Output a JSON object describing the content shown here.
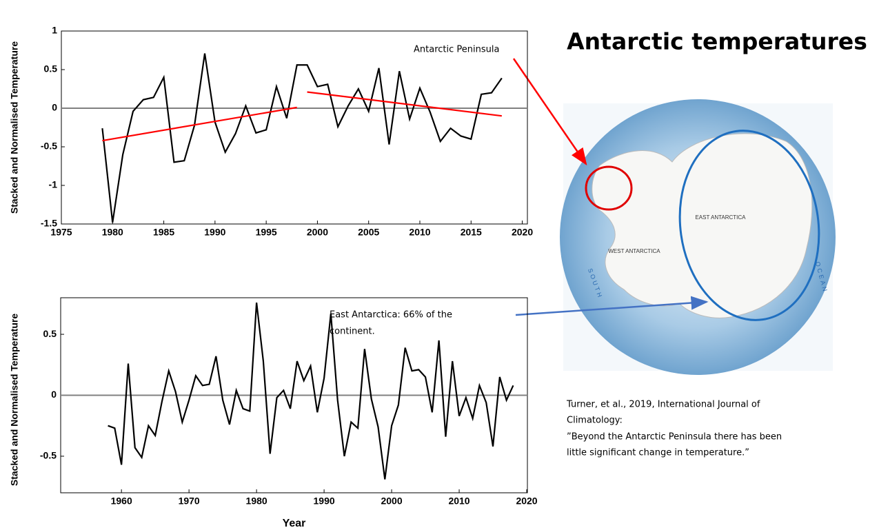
{
  "title": "Antarctic temperatures",
  "annotations": [
    "Antarctic Peninsula",
    "East Antarctica: 66% of the",
    "continent."
  ],
  "citation": [
    "Turner, et al., 2019, International Journal of",
    "Climatology:",
    "”Beyond the Antarctic Peninsula there has been",
    "little significant change in temperature.”"
  ],
  "map": {
    "labels": [
      "EAST ANTARCTICA",
      "WEST ANTARCTICA",
      "SOUTH",
      "OCEAN"
    ]
  },
  "chart_data": [
    {
      "type": "line",
      "ylabel": "Stacked and Normalised Temperature",
      "x": [
        1979,
        1980,
        1981,
        1982,
        1983,
        1984,
        1985,
        1986,
        1987,
        1988,
        1989,
        1990,
        1991,
        1992,
        1993,
        1994,
        1995,
        1996,
        1997,
        1998,
        1999,
        2000,
        2001,
        2002,
        2003,
        2004,
        2005,
        2006,
        2007,
        2008,
        2009,
        2010,
        2011,
        2012,
        2013,
        2014,
        2015,
        2016,
        2017,
        2018
      ],
      "series": [
        {
          "color": "#000000",
          "values": [
            -0.26,
            -1.48,
            -0.6,
            -0.04,
            0.11,
            0.14,
            0.4,
            -0.7,
            -0.68,
            -0.22,
            0.71,
            -0.18,
            -0.57,
            -0.33,
            0.03,
            -0.32,
            -0.28,
            0.28,
            -0.13,
            0.56,
            0.56,
            0.28,
            0.31,
            -0.24,
            0.03,
            0.25,
            -0.04,
            0.52,
            -0.47,
            0.48,
            -0.14,
            0.26,
            -0.05,
            -0.43,
            -0.26,
            -0.36,
            -0.4,
            0.18,
            0.2,
            0.39
          ]
        }
      ],
      "trend_lines": [
        {
          "color": "#ff0000",
          "x": [
            1979,
            1998
          ],
          "values": [
            -0.42,
            0.01
          ]
        },
        {
          "color": "#ff0000",
          "x": [
            1999,
            2018
          ],
          "values": [
            0.21,
            -0.1
          ]
        }
      ],
      "zero_line": true,
      "xlim": [
        1975,
        2020.5
      ],
      "xticks": [
        1975,
        1980,
        1985,
        1990,
        1995,
        2000,
        2005,
        2010,
        2015,
        2020
      ],
      "ylim": [
        -1.5,
        1
      ],
      "yticks": [
        -1.5,
        -1,
        -0.5,
        0,
        0.5,
        1
      ]
    },
    {
      "type": "line",
      "ylabel": "Stacked and Normalised Temperature",
      "xlabel": "Year",
      "x": [
        1958,
        1959,
        1960,
        1961,
        1962,
        1963,
        1964,
        1965,
        1966,
        1967,
        1968,
        1969,
        1970,
        1971,
        1972,
        1973,
        1974,
        1975,
        1976,
        1977,
        1978,
        1979,
        1980,
        1981,
        1982,
        1983,
        1984,
        1985,
        1986,
        1987,
        1988,
        1989,
        1990,
        1991,
        1992,
        1993,
        1994,
        1995,
        1996,
        1997,
        1998,
        1999,
        2000,
        2001,
        2002,
        2003,
        2004,
        2005,
        2006,
        2007,
        2008,
        2009,
        2010,
        2011,
        2012,
        2013,
        2014,
        2015,
        2016,
        2017,
        2018
      ],
      "series": [
        {
          "color": "#000000",
          "values": [
            -0.25,
            -0.27,
            -0.57,
            0.26,
            -0.43,
            -0.51,
            -0.25,
            -0.33,
            -0.05,
            0.2,
            0.03,
            -0.22,
            -0.04,
            0.16,
            0.08,
            0.09,
            0.32,
            -0.04,
            -0.24,
            0.04,
            -0.11,
            -0.13,
            0.76,
            0.28,
            -0.48,
            -0.02,
            0.04,
            -0.11,
            0.28,
            0.12,
            0.24,
            -0.14,
            0.14,
            0.67,
            -0.04,
            -0.5,
            -0.22,
            -0.27,
            0.38,
            -0.03,
            -0.26,
            -0.69,
            -0.25,
            -0.08,
            0.39,
            0.2,
            0.21,
            0.15,
            -0.14,
            0.45,
            -0.34,
            0.28,
            -0.17,
            -0.02,
            -0.19,
            0.08,
            -0.06,
            -0.42,
            0.15,
            -0.04,
            0.08
          ]
        }
      ],
      "zero_line": true,
      "xlim": [
        1951,
        2020.1
      ],
      "xticks": [
        1960,
        1970,
        1980,
        1990,
        2000,
        2010,
        2020
      ],
      "ylim": [
        -0.8,
        0.8
      ],
      "yticks": [
        -0.5,
        0,
        0.5
      ]
    }
  ]
}
